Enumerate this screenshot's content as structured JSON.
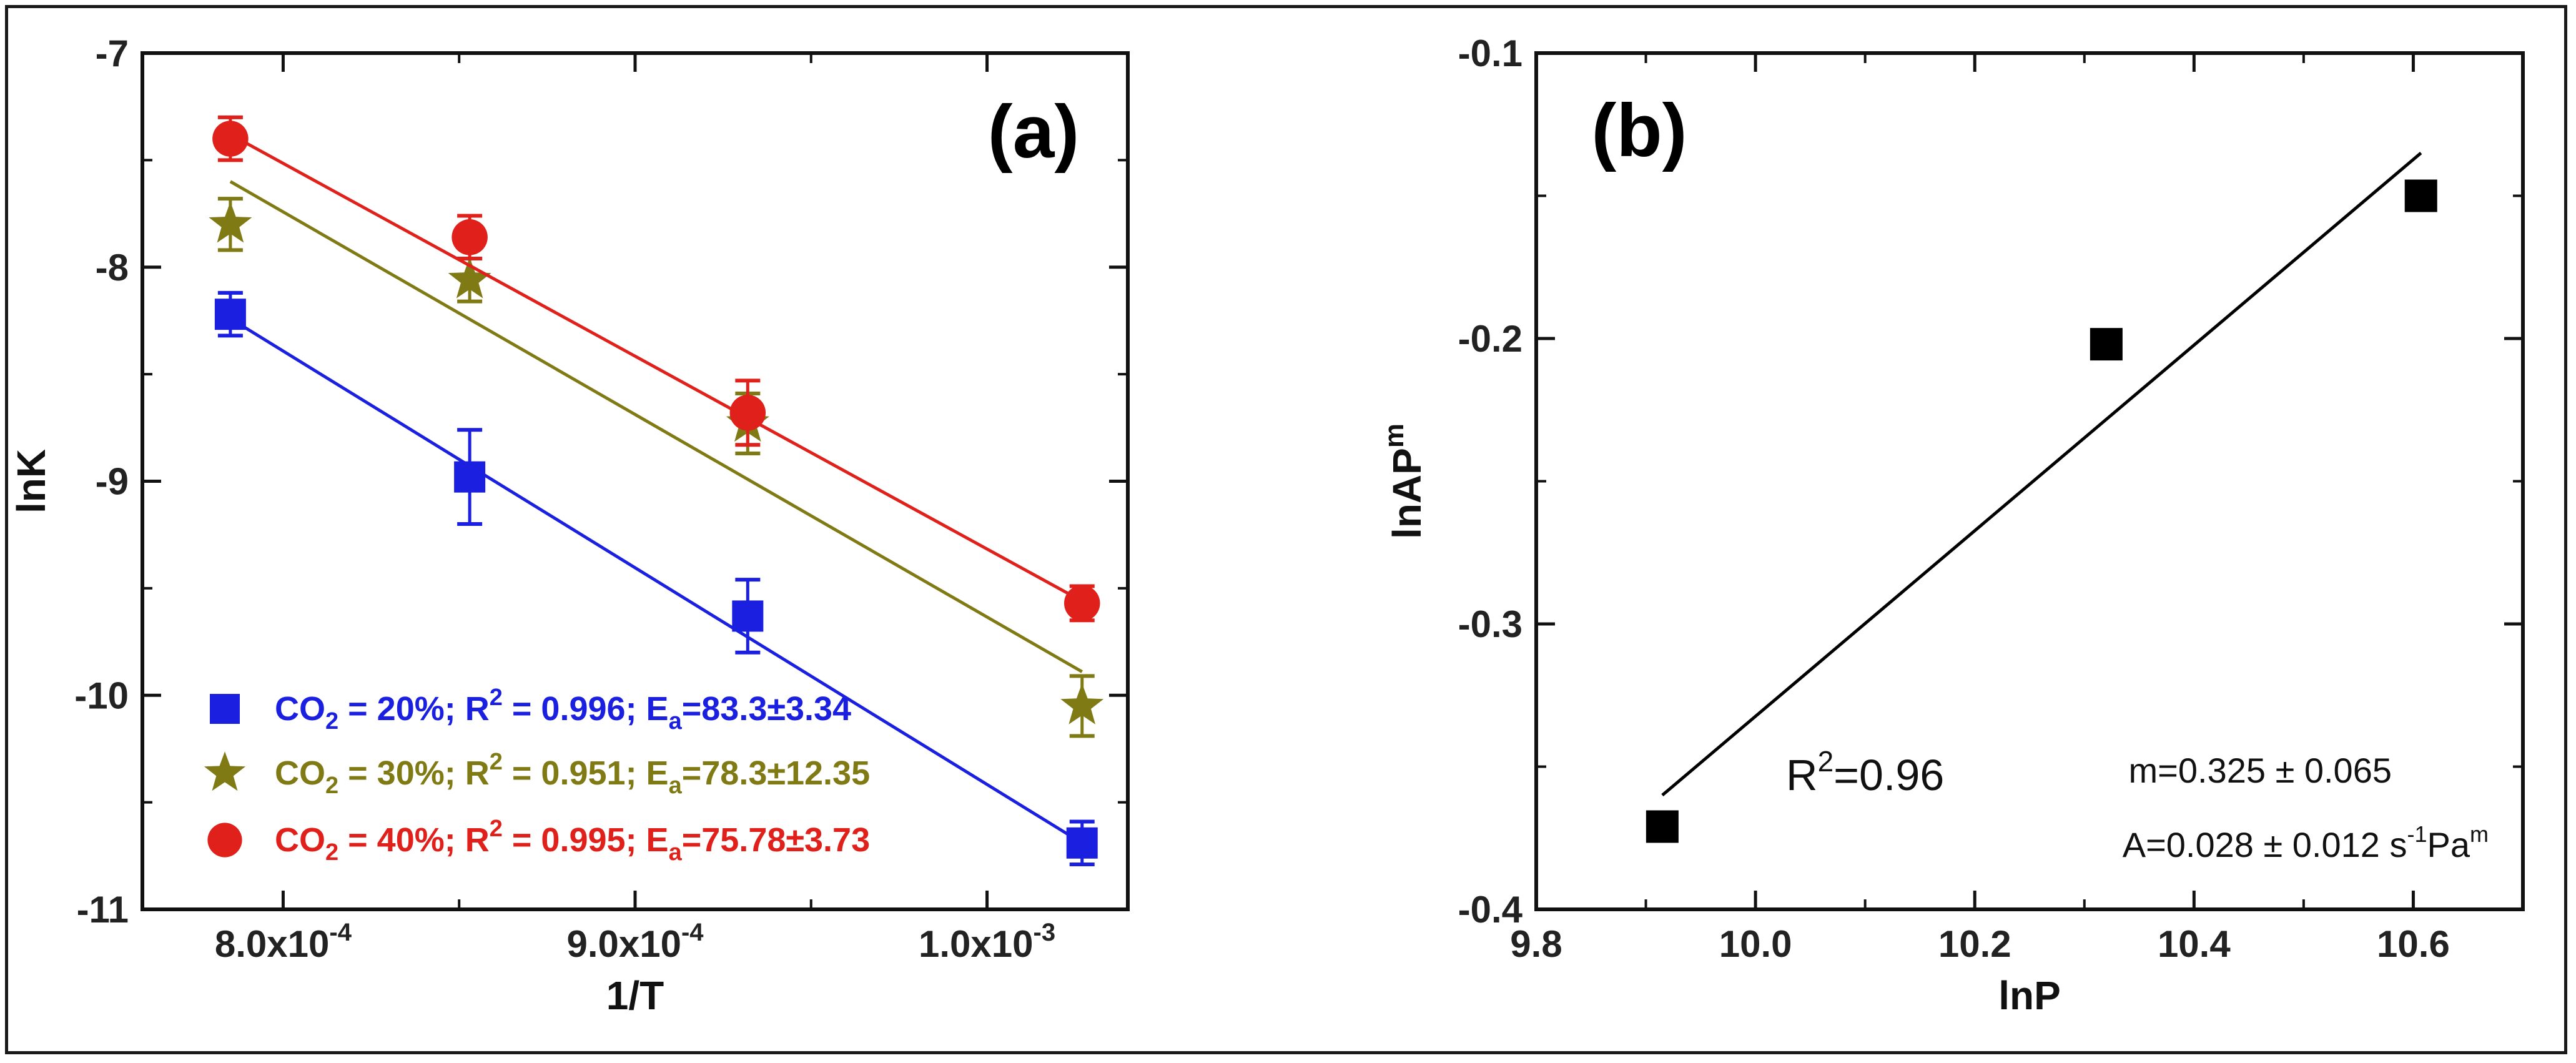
{
  "chart_data": [
    {
      "type": "scatter",
      "panel_label": "(a)",
      "xlabel": "1/T",
      "ylabel": "lnK",
      "xlim": [
        0.00076,
        0.00104
      ],
      "ylim": [
        -11,
        -7
      ],
      "x_ticks": [
        {
          "value": 0.0008,
          "mant": "8.0x10",
          "exp": "-4"
        },
        {
          "value": 0.0009,
          "mant": "9.0x10",
          "exp": "-4"
        },
        {
          "value": 0.001,
          "mant": "1.0x10",
          "exp": "-3"
        }
      ],
      "y_ticks": [
        {
          "value": -7,
          "label": "-7"
        },
        {
          "value": -8,
          "label": "-8"
        },
        {
          "value": -9,
          "label": "-9"
        },
        {
          "value": -10,
          "label": "-10"
        },
        {
          "value": -11,
          "label": "-11"
        }
      ],
      "x": [
        0.000785,
        0.000853,
        0.000932,
        0.001027
      ],
      "series": [
        {
          "name": "CO2 = 20%",
          "color": "#1a1fe0",
          "marker": "square",
          "values": [
            -8.22,
            -8.98,
            -9.63,
            -10.69
          ],
          "errors": [
            0.1,
            0.22,
            0.17,
            0.1
          ],
          "fit": [
            -8.24,
            -10.69
          ],
          "legend": {
            "pre": "CO",
            "sub": "2",
            "mid": " = 20%; R",
            "sup": "2",
            "mid2": " = 0.996; E",
            "sub2": "a",
            "post": "=83.3±3.34"
          }
        },
        {
          "name": "CO2 = 30%",
          "color": "#7f7a14",
          "marker": "star",
          "values": [
            -7.8,
            -8.06,
            -8.73,
            -10.05
          ],
          "errors": [
            0.12,
            0.1,
            0.14,
            0.14
          ],
          "fit": [
            -7.6,
            -9.89
          ],
          "legend": {
            "pre": "CO",
            "sub": "2",
            "mid": " = 30%; R",
            "sup": "2",
            "mid2": " = 0.951; E",
            "sub2": "a",
            "post": "=78.3±12.35"
          }
        },
        {
          "name": "CO2 = 40%",
          "color": "#e0201a",
          "marker": "circle",
          "values": [
            -7.4,
            -7.86,
            -8.68,
            -9.57
          ],
          "errors": [
            0.1,
            0.1,
            0.15,
            0.08
          ],
          "fit": [
            -7.38,
            -9.56
          ],
          "legend": {
            "pre": "CO",
            "sub": "2",
            "mid": " = 40%; R",
            "sup": "2",
            "mid2": " = 0.995; E",
            "sub2": "a",
            "post": "=75.78±3.73"
          }
        }
      ]
    },
    {
      "type": "scatter",
      "panel_label": "(b)",
      "xlabel": "lnP",
      "ylabel": {
        "base": "lnAP",
        "sup": "m"
      },
      "xlim": [
        9.8,
        10.7
      ],
      "ylim": [
        -0.4,
        -0.1
      ],
      "x_ticks": [
        {
          "value": 9.8,
          "label": "9.8"
        },
        {
          "value": 10.0,
          "label": "10.0"
        },
        {
          "value": 10.2,
          "label": "10.2"
        },
        {
          "value": 10.4,
          "label": "10.4"
        },
        {
          "value": 10.6,
          "label": "10.6"
        }
      ],
      "y_ticks": [
        {
          "value": -0.1,
          "label": "-0.1"
        },
        {
          "value": -0.2,
          "label": "-0.2"
        },
        {
          "value": -0.3,
          "label": "-0.3"
        },
        {
          "value": -0.4,
          "label": "-0.4"
        }
      ],
      "x": [
        9.915,
        10.32,
        10.607
      ],
      "values": [
        -0.371,
        -0.202,
        -0.15
      ],
      "fit_x": [
        9.915,
        10.607
      ],
      "fit_y": [
        -0.36,
        -0.135
      ],
      "color": "#000000",
      "annotations": {
        "r2": {
          "pre": "R",
          "sup": "2",
          "post": "=0.96"
        },
        "m": "m=0.325 ± 0.065",
        "a": {
          "pre": "A=0.028 ± 0.012 s",
          "sup1": "-1",
          "mid": "Pa",
          "sup2": "m"
        }
      }
    }
  ]
}
